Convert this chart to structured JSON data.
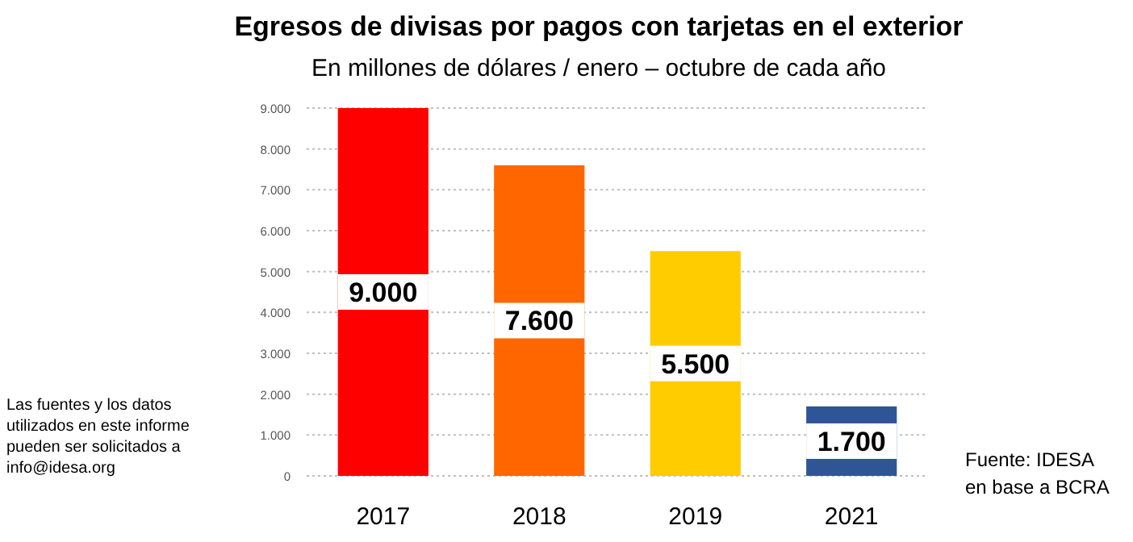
{
  "chart_data": {
    "type": "bar",
    "title": "Egresos de divisas por pagos con tarjetas en el exterior",
    "subtitle": "En millones de dólares / enero – octubre de cada año",
    "categories": [
      "2017",
      "2018",
      "2019",
      "2021"
    ],
    "values": [
      9000,
      7600,
      5500,
      1700
    ],
    "colors": [
      "#ff0000",
      "#ff6600",
      "#ffcc00",
      "#2f5597"
    ],
    "value_labels": [
      "9.000",
      "7.600",
      "5.500",
      "1.700"
    ],
    "ylim": [
      0,
      9000
    ],
    "yticks": [
      {
        "value": 0,
        "label": "0"
      },
      {
        "value": 1000,
        "label": "1.000"
      },
      {
        "value": 2000,
        "label": "2.000"
      },
      {
        "value": 3000,
        "label": "3.000"
      },
      {
        "value": 4000,
        "label": "4.000"
      },
      {
        "value": 5000,
        "label": "5.000"
      },
      {
        "value": 6000,
        "label": "6.000"
      },
      {
        "value": 7000,
        "label": "7.000"
      },
      {
        "value": 8000,
        "label": "8.000"
      },
      {
        "value": 9000,
        "label": "9.000"
      }
    ],
    "grid": "y",
    "annotations": [
      "Las fuentes y los datos utilizados en este informe pueden ser solicitados a info@idesa.org",
      "Fuente: IDESA en base a BCRA"
    ]
  }
}
